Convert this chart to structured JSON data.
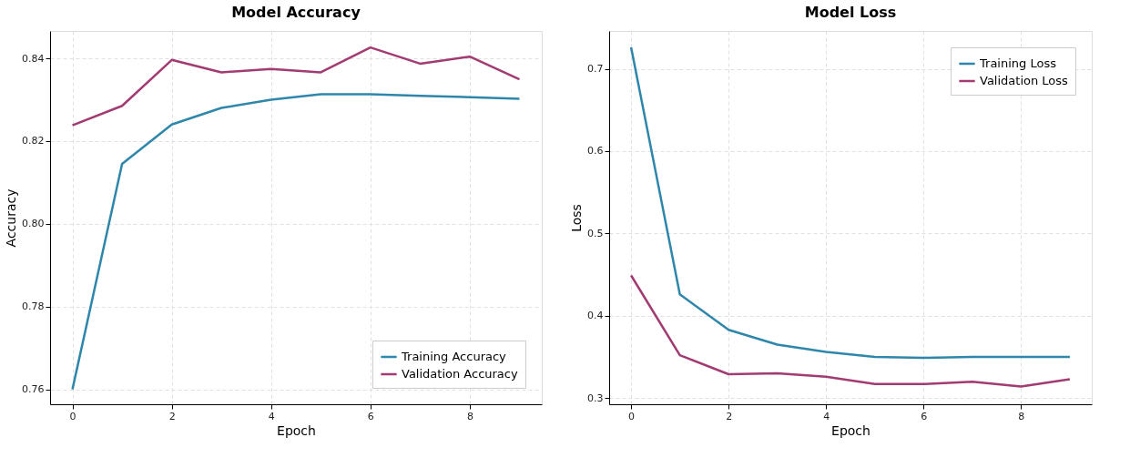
{
  "chart_data": [
    {
      "type": "line",
      "title": "Model Accuracy",
      "xlabel": "Epoch",
      "ylabel": "Accuracy",
      "x": [
        0,
        1,
        2,
        3,
        4,
        5,
        6,
        7,
        8,
        9
      ],
      "xlim": [
        -0.45,
        9.45
      ],
      "xticks": [
        0,
        2,
        4,
        6,
        8
      ],
      "ylim": [
        0.7564,
        0.8466
      ],
      "yticks": [
        0.76,
        0.78,
        {
          "value": 0.8,
          "label": "0.80"
        },
        0.82,
        0.84
      ],
      "grid": true,
      "legend": "bottom right",
      "line_style": "solid",
      "marker": "none",
      "series": [
        {
          "name": "Training Accuracy",
          "color": "#2e86ab",
          "values": [
            0.76,
            0.8145,
            0.824,
            0.828,
            0.83,
            0.8313,
            0.8313,
            0.8309,
            0.8306,
            0.8302
          ]
        },
        {
          "name": "Validation Accuracy",
          "color": "#a23b72",
          "values": [
            0.8238,
            0.8285,
            0.8396,
            0.8366,
            0.8374,
            0.8366,
            0.8426,
            0.8387,
            0.8404,
            0.8349
          ]
        }
      ]
    },
    {
      "type": "line",
      "title": "Model Loss",
      "xlabel": "Epoch",
      "ylabel": "Loss",
      "x": [
        0,
        1,
        2,
        3,
        4,
        5,
        6,
        7,
        8,
        9
      ],
      "xlim": [
        -0.45,
        9.45
      ],
      "xticks": [
        0,
        2,
        4,
        6,
        8
      ],
      "ylim": [
        0.2925,
        0.746
      ],
      "yticks": [
        0.3,
        0.4,
        0.5,
        0.6,
        0.7
      ],
      "grid": true,
      "legend": "top right",
      "line_style": "solid",
      "marker": "none",
      "series": [
        {
          "name": "Training Loss",
          "color": "#2e86ab",
          "values": [
            0.726,
            0.426,
            0.383,
            0.365,
            0.356,
            0.35,
            0.349,
            0.35,
            0.35,
            0.35
          ]
        },
        {
          "name": "Validation Loss",
          "color": "#a23b72",
          "values": [
            0.449,
            0.352,
            0.329,
            0.33,
            0.326,
            0.317,
            0.317,
            0.32,
            0.314,
            0.323
          ]
        }
      ]
    }
  ]
}
